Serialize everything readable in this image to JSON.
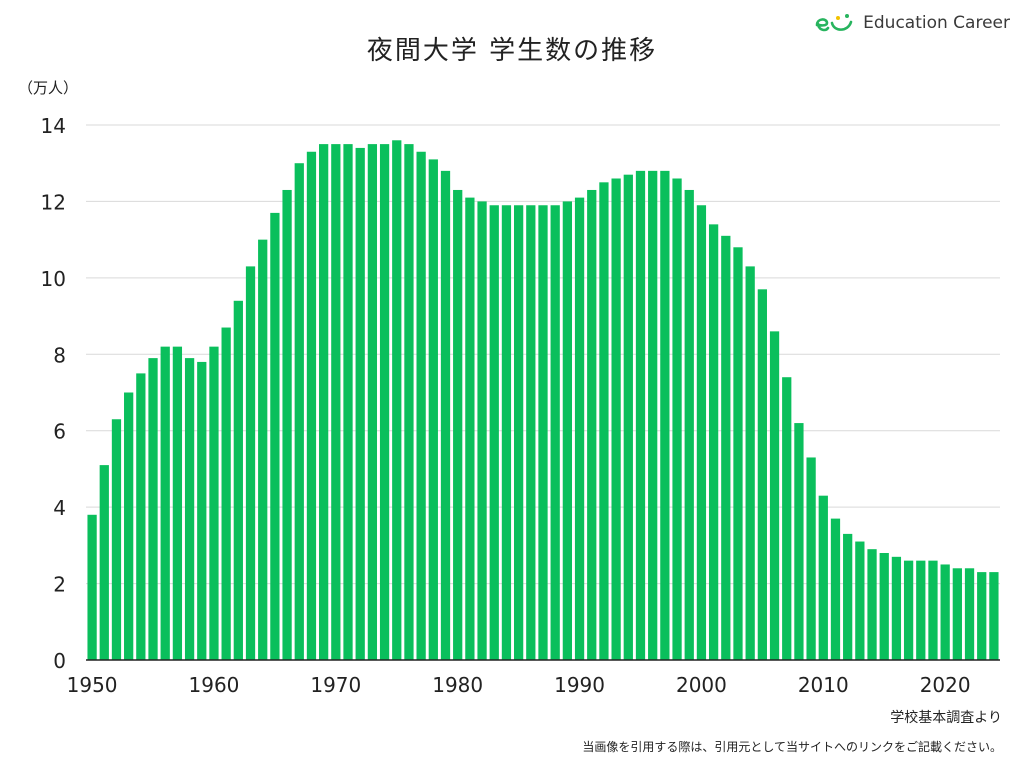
{
  "title": "夜間大学 学生数の推移",
  "logo": {
    "text": "Education Career",
    "icon": "ec-smile-logo-icon"
  },
  "colors": {
    "bar": "#0abf5c",
    "grid": "#d9d9d9",
    "axis": "#222222",
    "logo_green": "#27b45e"
  },
  "chart_data": {
    "type": "bar",
    "title": "夜間大学 学生数の推移",
    "ylabel": "（万人）",
    "xlabel": "",
    "ylim": [
      0,
      14
    ],
    "yticks": [
      "0",
      "2",
      "4",
      "6",
      "8",
      "10",
      "12",
      "14"
    ],
    "xticks": [
      "1950",
      "1960",
      "1970",
      "1980",
      "1990",
      "2000",
      "2010",
      "2020"
    ],
    "grid": true,
    "categories": [
      "1950",
      "1951",
      "1952",
      "1953",
      "1954",
      "1955",
      "1956",
      "1957",
      "1958",
      "1959",
      "1960",
      "1961",
      "1962",
      "1963",
      "1964",
      "1965",
      "1966",
      "1967",
      "1968",
      "1969",
      "1970",
      "1971",
      "1972",
      "1973",
      "1974",
      "1975",
      "1976",
      "1977",
      "1978",
      "1979",
      "1980",
      "1981",
      "1982",
      "1983",
      "1984",
      "1985",
      "1986",
      "1987",
      "1988",
      "1989",
      "1990",
      "1991",
      "1992",
      "1993",
      "1994",
      "1995",
      "1996",
      "1997",
      "1998",
      "1999",
      "2000",
      "2001",
      "2002",
      "2003",
      "2004",
      "2005",
      "2006",
      "2007",
      "2008",
      "2009",
      "2010",
      "2011",
      "2012",
      "2013",
      "2014",
      "2015",
      "2016",
      "2017",
      "2018",
      "2019",
      "2020",
      "2021",
      "2022",
      "2023",
      "2024"
    ],
    "values": [
      3.8,
      5.1,
      6.3,
      7.0,
      7.5,
      7.9,
      8.2,
      8.2,
      7.9,
      7.8,
      8.2,
      8.7,
      9.4,
      10.3,
      11.0,
      11.7,
      12.3,
      13.0,
      13.3,
      13.5,
      13.5,
      13.5,
      13.4,
      13.5,
      13.5,
      13.6,
      13.5,
      13.3,
      13.1,
      12.8,
      12.3,
      12.1,
      12.0,
      11.9,
      11.9,
      11.9,
      11.9,
      11.9,
      11.9,
      12.0,
      12.1,
      12.3,
      12.5,
      12.6,
      12.7,
      12.8,
      12.8,
      12.8,
      12.6,
      12.3,
      11.9,
      11.4,
      11.1,
      10.8,
      10.3,
      9.7,
      8.6,
      7.4,
      6.2,
      5.3,
      4.3,
      3.7,
      3.3,
      3.1,
      2.9,
      2.8,
      2.7,
      2.6,
      2.6,
      2.6,
      2.5,
      2.4,
      2.4,
      2.3,
      2.3
    ]
  },
  "source": "学校基本調査より",
  "notice": "当画像を引用する際は、引用元として当サイトへのリンクをご記載ください。"
}
